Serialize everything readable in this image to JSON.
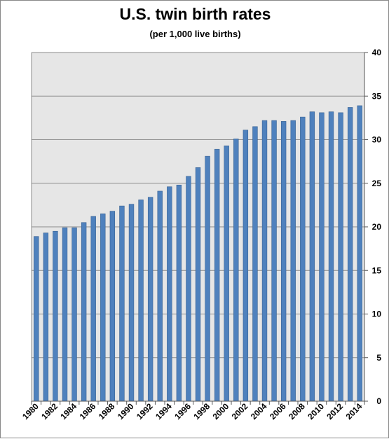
{
  "chart_data": {
    "type": "bar",
    "title": "U.S. twin birth rates",
    "subtitle": "(per 1,000 live births)",
    "xlabel": "",
    "ylabel": "",
    "ylim": [
      0,
      40
    ],
    "y_ticks": [
      0,
      5,
      10,
      15,
      20,
      25,
      30,
      35,
      40
    ],
    "y_axis_side": "right",
    "grid": true,
    "legend": "none",
    "categories": [
      1980,
      1981,
      1982,
      1983,
      1984,
      1985,
      1986,
      1987,
      1988,
      1989,
      1990,
      1991,
      1992,
      1993,
      1994,
      1995,
      1996,
      1997,
      1998,
      1999,
      2000,
      2001,
      2002,
      2003,
      2004,
      2005,
      2006,
      2007,
      2008,
      2009,
      2010,
      2011,
      2012,
      2013,
      2014
    ],
    "x_tick_labels": [
      "1980",
      "1982",
      "1984",
      "1986",
      "1988",
      "1990",
      "1992",
      "1994",
      "1996",
      "1998",
      "2000",
      "2002",
      "2004",
      "2006",
      "2008",
      "2010",
      "2012",
      "2014"
    ],
    "values": [
      18.9,
      19.3,
      19.5,
      19.9,
      19.9,
      20.5,
      21.2,
      21.5,
      21.8,
      22.4,
      22.6,
      23.1,
      23.4,
      24.1,
      24.6,
      24.8,
      25.8,
      26.8,
      28.1,
      28.9,
      29.3,
      30.1,
      31.1,
      31.5,
      32.2,
      32.2,
      32.1,
      32.2,
      32.6,
      33.2,
      33.1,
      33.2,
      33.1,
      33.7,
      33.9
    ],
    "colors": {
      "bar_fill": "#4f81bd",
      "bar_stroke": "#3a6393",
      "plot_background": "#e6e6e6",
      "gridline": "#8c8c8c"
    }
  }
}
